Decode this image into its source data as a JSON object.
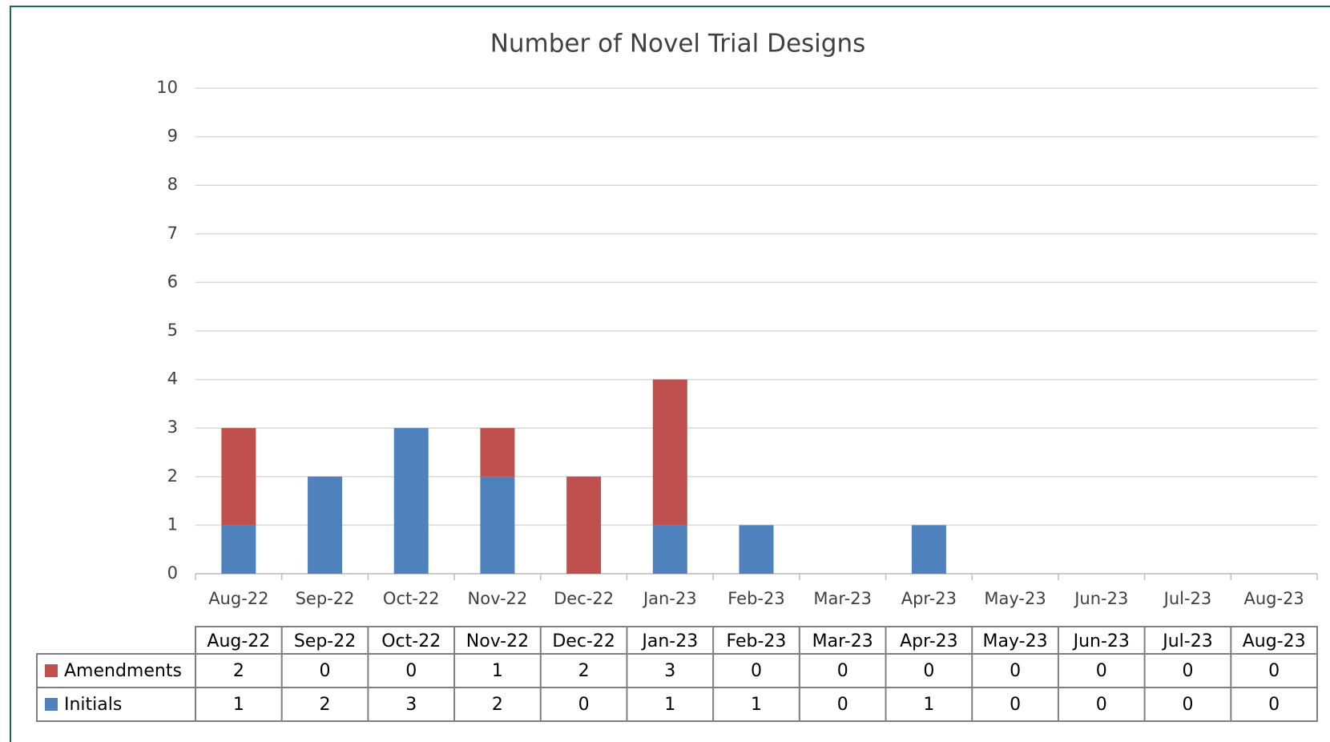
{
  "chart_data": {
    "type": "bar",
    "stacked": true,
    "title": "Number of Novel Trial Designs",
    "categories": [
      "Aug-22",
      "Sep-22",
      "Oct-22",
      "Nov-22",
      "Dec-22",
      "Jan-23",
      "Feb-23",
      "Mar-23",
      "Apr-23",
      "May-23",
      "Jun-23",
      "Jul-23",
      "Aug-23"
    ],
    "series": [
      {
        "name": "Amendments",
        "color": "#c0504d",
        "values": [
          2,
          0,
          0,
          1,
          2,
          3,
          0,
          0,
          0,
          0,
          0,
          0,
          0
        ]
      },
      {
        "name": "Initials",
        "color": "#4f81bd",
        "values": [
          1,
          2,
          3,
          2,
          0,
          1,
          1,
          0,
          1,
          0,
          0,
          0,
          0
        ]
      }
    ],
    "ylim": [
      0,
      10
    ],
    "yticks": [
      0,
      1,
      2,
      3,
      4,
      5,
      6,
      7,
      8,
      9,
      10
    ],
    "grid": true,
    "data_table": true
  }
}
